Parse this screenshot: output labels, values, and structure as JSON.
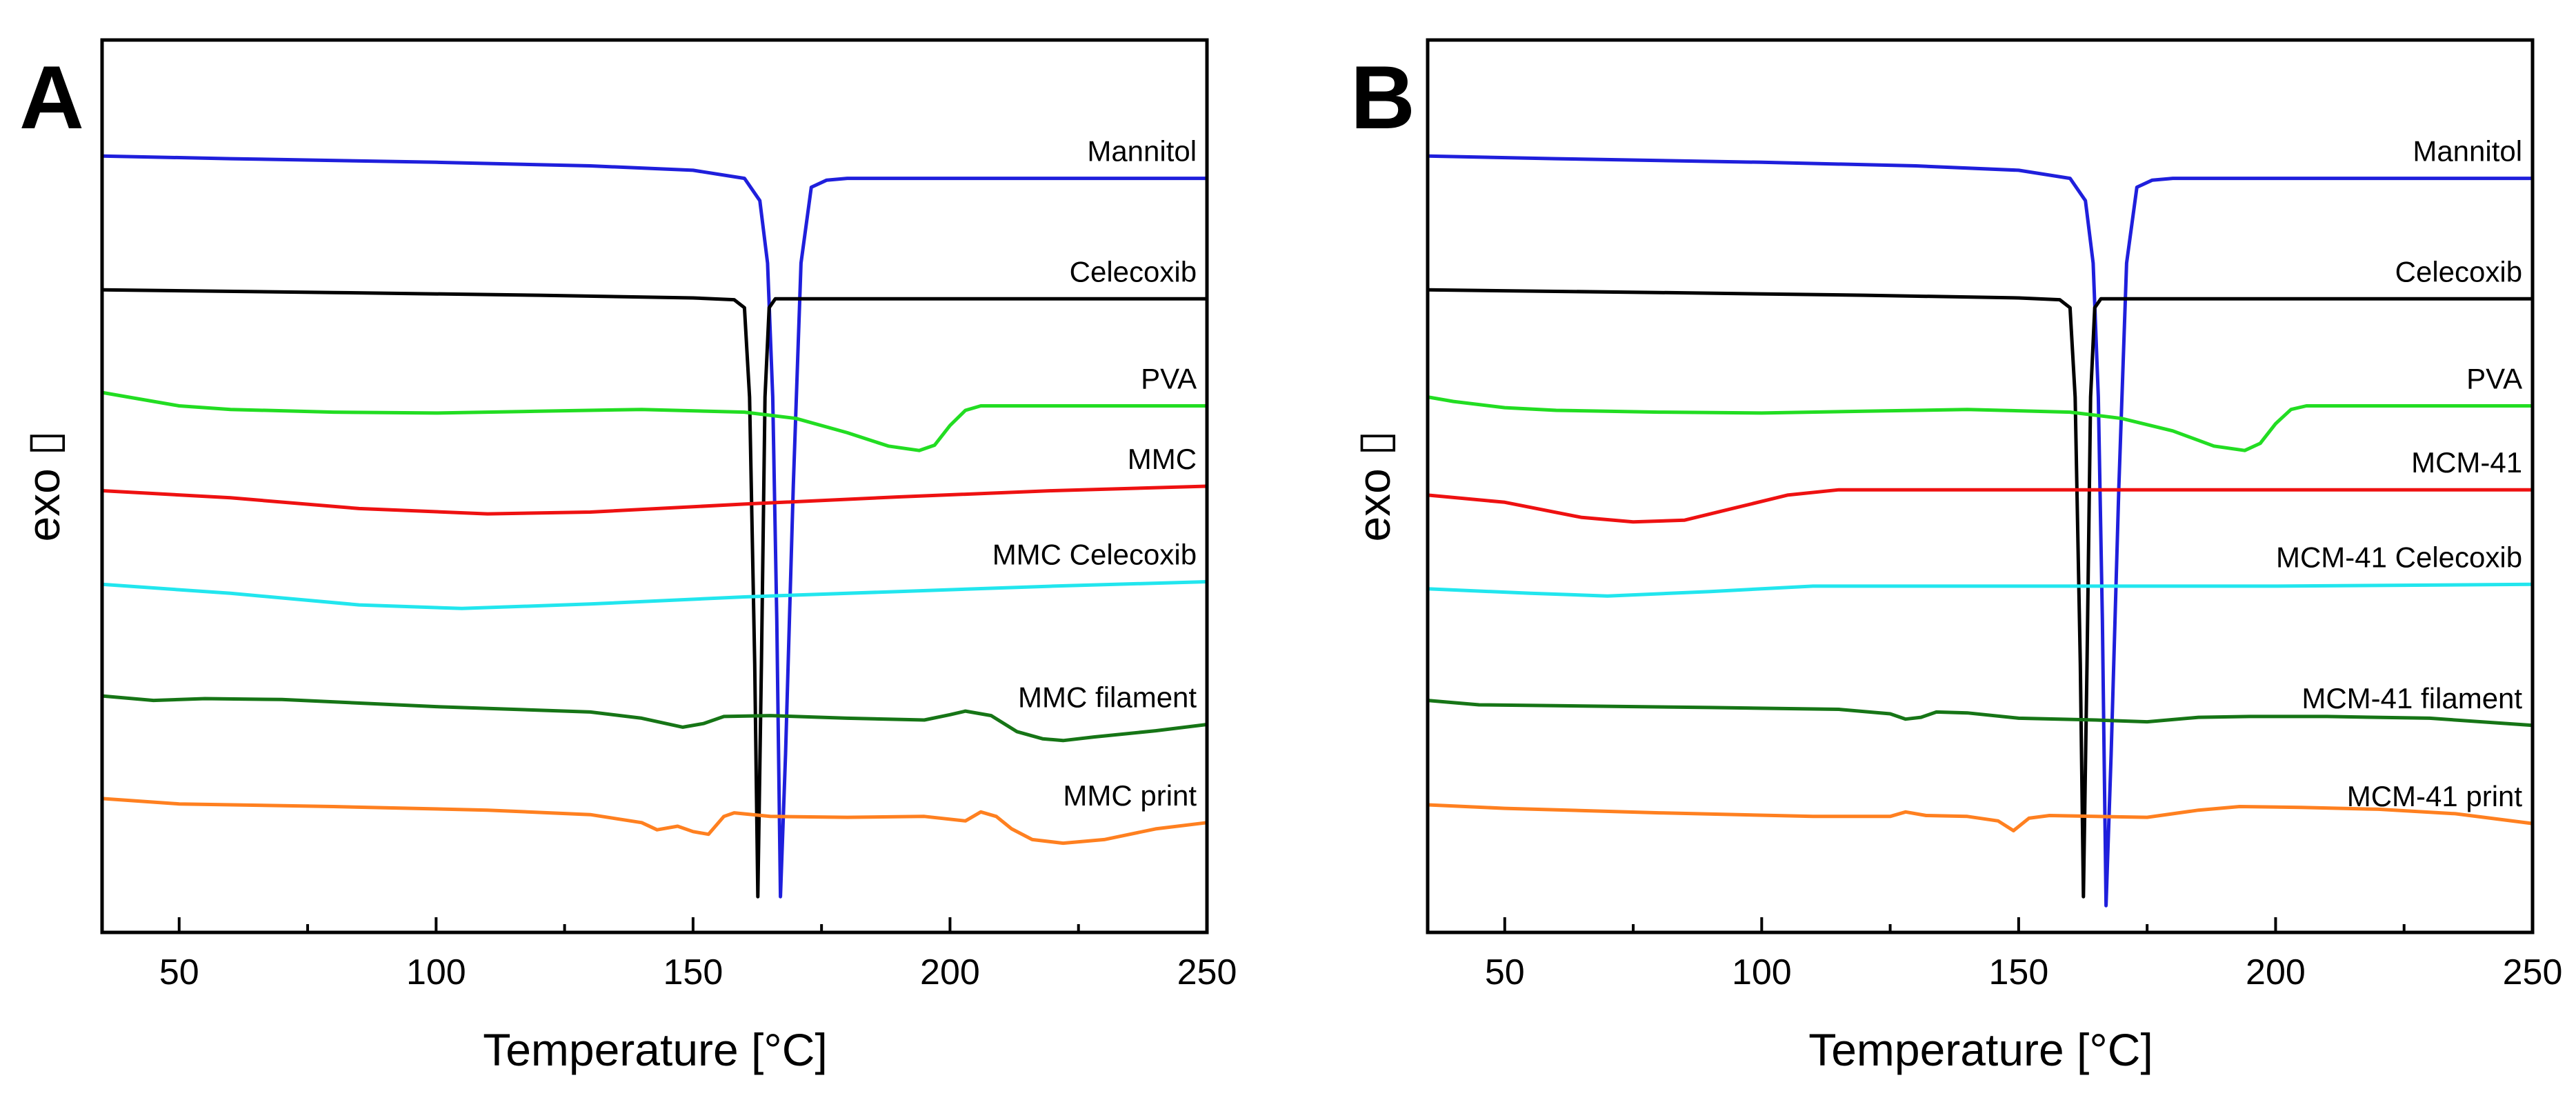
{
  "chart_data": [
    {
      "type": "line",
      "panel": "A",
      "xlabel": "Temperature [°C]",
      "ylabel": "exo ▯",
      "xlim": [
        35,
        250
      ],
      "ylim": [
        0,
        100
      ],
      "xticks": [
        50,
        100,
        150,
        200,
        250
      ],
      "xtick_labels": [
        "50",
        "100",
        "150",
        "200",
        "250"
      ],
      "grid": false,
      "series": [
        {
          "name": "Mannitol",
          "color": "#1f1fdc",
          "label_anchor_x": 248,
          "points": [
            [
              35,
              87
            ],
            [
              60,
              86.7
            ],
            [
              100,
              86.3
            ],
            [
              130,
              85.9
            ],
            [
              150,
              85.4
            ],
            [
              160,
              84.5
            ],
            [
              163,
              82
            ],
            [
              164.5,
              75
            ],
            [
              165.5,
              60
            ],
            [
              166.3,
              35
            ],
            [
              167,
              4
            ],
            [
              168,
              20
            ],
            [
              169.5,
              50
            ],
            [
              171,
              75
            ],
            [
              173,
              83.5
            ],
            [
              176,
              84.3
            ],
            [
              180,
              84.5
            ],
            [
              200,
              84.5
            ],
            [
              250,
              84.5
            ]
          ]
        },
        {
          "name": "Celecoxib",
          "color": "#000000",
          "label_anchor_x": 248,
          "points": [
            [
              35,
              72
            ],
            [
              80,
              71.7
            ],
            [
              120,
              71.4
            ],
            [
              150,
              71.1
            ],
            [
              158,
              70.9
            ],
            [
              160,
              70
            ],
            [
              161,
              60
            ],
            [
              162,
              30
            ],
            [
              162.6,
              4
            ],
            [
              163.3,
              30
            ],
            [
              164,
              60
            ],
            [
              164.8,
              70
            ],
            [
              166,
              71
            ],
            [
              170,
              71
            ],
            [
              200,
              71
            ],
            [
              250,
              71
            ]
          ]
        },
        {
          "name": "PVA",
          "color": "#22dd22",
          "label_anchor_x": 248,
          "points": [
            [
              35,
              60.5
            ],
            [
              40,
              60
            ],
            [
              50,
              59
            ],
            [
              60,
              58.6
            ],
            [
              80,
              58.3
            ],
            [
              100,
              58.2
            ],
            [
              120,
              58.4
            ],
            [
              140,
              58.6
            ],
            [
              160,
              58.3
            ],
            [
              170,
              57.6
            ],
            [
              180,
              56
            ],
            [
              188,
              54.5
            ],
            [
              194,
              54
            ],
            [
              197,
              54.6
            ],
            [
              200,
              56.8
            ],
            [
              203,
              58.5
            ],
            [
              206,
              59
            ],
            [
              220,
              59
            ],
            [
              250,
              59
            ]
          ]
        },
        {
          "name": "MMC",
          "color": "#ee1111",
          "label_anchor_x": 248,
          "points": [
            [
              35,
              49.5
            ],
            [
              60,
              48.7
            ],
            [
              85,
              47.5
            ],
            [
              110,
              46.9
            ],
            [
              130,
              47.1
            ],
            [
              160,
              48
            ],
            [
              190,
              48.8
            ],
            [
              220,
              49.5
            ],
            [
              250,
              50
            ]
          ]
        },
        {
          "name": "MMC Celecoxib",
          "color": "#22e6ee",
          "label_anchor_x": 248,
          "points": [
            [
              35,
              39
            ],
            [
              60,
              38
            ],
            [
              85,
              36.7
            ],
            [
              105,
              36.3
            ],
            [
              130,
              36.8
            ],
            [
              160,
              37.6
            ],
            [
              190,
              38.2
            ],
            [
              220,
              38.8
            ],
            [
              250,
              39.3
            ]
          ]
        },
        {
          "name": "MMC filament",
          "color": "#167516",
          "label_anchor_x": 248,
          "points": [
            [
              35,
              26.5
            ],
            [
              45,
              26
            ],
            [
              55,
              26.2
            ],
            [
              70,
              26.1
            ],
            [
              100,
              25.3
            ],
            [
              130,
              24.7
            ],
            [
              140,
              24
            ],
            [
              148,
              23
            ],
            [
              152,
              23.4
            ],
            [
              156,
              24.2
            ],
            [
              165,
              24.3
            ],
            [
              180,
              24
            ],
            [
              195,
              23.8
            ],
            [
              200,
              24.4
            ],
            [
              203,
              24.8
            ],
            [
              208,
              24.3
            ],
            [
              213,
              22.5
            ],
            [
              218,
              21.7
            ],
            [
              222,
              21.5
            ],
            [
              228,
              21.9
            ],
            [
              240,
              22.6
            ],
            [
              250,
              23.3
            ]
          ]
        },
        {
          "name": "MMC print",
          "color": "#ff8020",
          "label_anchor_x": 248,
          "points": [
            [
              35,
              15
            ],
            [
              50,
              14.4
            ],
            [
              80,
              14.1
            ],
            [
              110,
              13.7
            ],
            [
              130,
              13.2
            ],
            [
              140,
              12.3
            ],
            [
              143,
              11.5
            ],
            [
              147,
              11.9
            ],
            [
              150,
              11.3
            ],
            [
              153,
              11
            ],
            [
              156,
              13
            ],
            [
              158,
              13.4
            ],
            [
              165,
              13
            ],
            [
              180,
              12.9
            ],
            [
              195,
              13
            ],
            [
              203,
              12.5
            ],
            [
              206,
              13.5
            ],
            [
              209,
              13
            ],
            [
              212,
              11.6
            ],
            [
              216,
              10.4
            ],
            [
              222,
              10
            ],
            [
              230,
              10.4
            ],
            [
              240,
              11.6
            ],
            [
              250,
              12.3
            ]
          ]
        }
      ]
    },
    {
      "type": "line",
      "panel": "B",
      "xlabel": "Temperature [°C]",
      "ylabel": "exo ▯",
      "xlim": [
        35,
        250
      ],
      "ylim": [
        0,
        100
      ],
      "xticks": [
        50,
        100,
        150,
        200,
        250
      ],
      "xtick_labels": [
        "50",
        "100",
        "150",
        "200",
        "250"
      ],
      "grid": false,
      "series": [
        {
          "name": "Mannitol",
          "color": "#1f1fdc",
          "label_anchor_x": 248,
          "points": [
            [
              35,
              87
            ],
            [
              60,
              86.7
            ],
            [
              100,
              86.3
            ],
            [
              130,
              85.9
            ],
            [
              150,
              85.4
            ],
            [
              160,
              84.5
            ],
            [
              163,
              82
            ],
            [
              164.5,
              75
            ],
            [
              165.5,
              60
            ],
            [
              166.3,
              35
            ],
            [
              167,
              3
            ],
            [
              168,
              20
            ],
            [
              169.5,
              50
            ],
            [
              171,
              75
            ],
            [
              173,
              83.5
            ],
            [
              176,
              84.3
            ],
            [
              180,
              84.5
            ],
            [
              200,
              84.5
            ],
            [
              250,
              84.5
            ]
          ]
        },
        {
          "name": "Celecoxib",
          "color": "#000000",
          "label_anchor_x": 248,
          "points": [
            [
              35,
              72
            ],
            [
              80,
              71.7
            ],
            [
              120,
              71.4
            ],
            [
              150,
              71.1
            ],
            [
              158,
              70.9
            ],
            [
              160,
              70
            ],
            [
              161,
              60
            ],
            [
              162,
              30
            ],
            [
              162.6,
              4
            ],
            [
              163.3,
              30
            ],
            [
              164,
              60
            ],
            [
              164.8,
              70
            ],
            [
              166,
              71
            ],
            [
              170,
              71
            ],
            [
              200,
              71
            ],
            [
              250,
              71
            ]
          ]
        },
        {
          "name": "PVA",
          "color": "#22dd22",
          "label_anchor_x": 248,
          "points": [
            [
              35,
              60
            ],
            [
              40,
              59.5
            ],
            [
              50,
              58.8
            ],
            [
              60,
              58.5
            ],
            [
              80,
              58.3
            ],
            [
              100,
              58.2
            ],
            [
              120,
              58.4
            ],
            [
              140,
              58.6
            ],
            [
              160,
              58.3
            ],
            [
              170,
              57.6
            ],
            [
              180,
              56.2
            ],
            [
              188,
              54.5
            ],
            [
              194,
              54
            ],
            [
              197,
              54.8
            ],
            [
              200,
              57
            ],
            [
              203,
              58.6
            ],
            [
              206,
              59
            ],
            [
              220,
              59
            ],
            [
              250,
              59
            ]
          ]
        },
        {
          "name": "MCM-41",
          "color": "#ee1111",
          "label_anchor_x": 248,
          "points": [
            [
              35,
              49
            ],
            [
              50,
              48.2
            ],
            [
              65,
              46.5
            ],
            [
              75,
              46
            ],
            [
              85,
              46.2
            ],
            [
              95,
              47.6
            ],
            [
              105,
              49
            ],
            [
              115,
              49.6
            ],
            [
              130,
              49.6
            ],
            [
              200,
              49.6
            ],
            [
              250,
              49.6
            ]
          ]
        },
        {
          "name": "MCM-41 Celecoxib",
          "color": "#22e6ee",
          "label_anchor_x": 248,
          "points": [
            [
              35,
              38.5
            ],
            [
              55,
              38
            ],
            [
              70,
              37.7
            ],
            [
              90,
              38.2
            ],
            [
              110,
              38.8
            ],
            [
              150,
              38.8
            ],
            [
              200,
              38.8
            ],
            [
              250,
              39
            ]
          ]
        },
        {
          "name": "MCM-41 filament",
          "color": "#167516",
          "label_anchor_x": 248,
          "points": [
            [
              35,
              26
            ],
            [
              45,
              25.5
            ],
            [
              60,
              25.4
            ],
            [
              90,
              25.2
            ],
            [
              115,
              25
            ],
            [
              125,
              24.5
            ],
            [
              128,
              23.9
            ],
            [
              131,
              24.1
            ],
            [
              134,
              24.7
            ],
            [
              140,
              24.6
            ],
            [
              150,
              24
            ],
            [
              165,
              23.8
            ],
            [
              175,
              23.6
            ],
            [
              185,
              24.1
            ],
            [
              195,
              24.2
            ],
            [
              210,
              24.2
            ],
            [
              230,
              24
            ],
            [
              250,
              23.2
            ]
          ]
        },
        {
          "name": "MCM-41 print",
          "color": "#ff8020",
          "label_anchor_x": 248,
          "points": [
            [
              35,
              14.3
            ],
            [
              50,
              13.9
            ],
            [
              80,
              13.4
            ],
            [
              110,
              13
            ],
            [
              125,
              13
            ],
            [
              128,
              13.5
            ],
            [
              132,
              13.1
            ],
            [
              140,
              13
            ],
            [
              146,
              12.5
            ],
            [
              149,
              11.4
            ],
            [
              152,
              12.8
            ],
            [
              156,
              13.1
            ],
            [
              165,
              13
            ],
            [
              175,
              12.9
            ],
            [
              185,
              13.7
            ],
            [
              193,
              14.1
            ],
            [
              205,
              14
            ],
            [
              220,
              13.8
            ],
            [
              235,
              13.3
            ],
            [
              250,
              12.2
            ]
          ]
        }
      ]
    }
  ],
  "panels": {
    "a": {
      "letter": "A",
      "xlabel": "Temperature [°C]",
      "ylabel": "exo ▯"
    },
    "b": {
      "letter": "B",
      "xlabel": "Temperature [°C]",
      "ylabel": "exo ▯"
    }
  }
}
